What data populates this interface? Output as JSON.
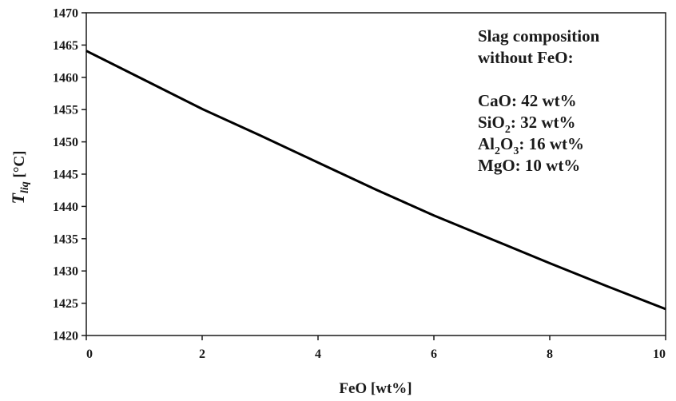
{
  "chart_data": {
    "type": "line",
    "xlabel": "FeO [wt%]",
    "ylabel": {
      "symbol": "T",
      "subscript": "liq",
      "unit": " [°C]"
    },
    "xlim": [
      0,
      10
    ],
    "ylim": [
      1420,
      1470
    ],
    "x_ticks": [
      0,
      2,
      4,
      6,
      8,
      10
    ],
    "y_ticks": [
      1420,
      1425,
      1430,
      1435,
      1440,
      1445,
      1450,
      1455,
      1460,
      1465,
      1470
    ],
    "grid": false,
    "series": [
      {
        "x": [
          0,
          1,
          2,
          3,
          4,
          5,
          6,
          7,
          8,
          9,
          10
        ],
        "y": [
          1464.1,
          1459.6,
          1455.1,
          1451.0,
          1446.8,
          1442.6,
          1438.6,
          1434.9,
          1431.2,
          1427.6,
          1424.1
        ],
        "color": "#000000"
      }
    ],
    "annotation": {
      "position": "top-right",
      "lines": [
        [
          {
            "t": "Slag composition"
          }
        ],
        [
          {
            "t": "without FeO:"
          }
        ],
        [],
        [
          {
            "t": "CaO: 42 wt%"
          }
        ],
        [
          {
            "t": "SiO"
          },
          {
            "t": "2",
            "sub": true
          },
          {
            "t": ": 32 wt%"
          }
        ],
        [
          {
            "t": "Al"
          },
          {
            "t": "2",
            "sub": true
          },
          {
            "t": "O"
          },
          {
            "t": "3",
            "sub": true
          },
          {
            "t": ": 16 wt%"
          }
        ],
        [
          {
            "t": "MgO: 10 wt%"
          }
        ]
      ]
    }
  }
}
